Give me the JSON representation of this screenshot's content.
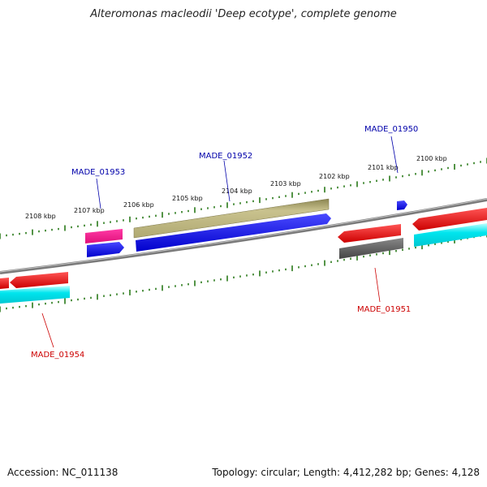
{
  "title": "Alteromonas macleodii 'Deep ecotype', complete genome",
  "footer": {
    "accession": "Accession: NC_011138",
    "summary": "Topology: circular; Length: 4,412,282 bp; Genes: 4,128"
  },
  "tick_labels": [
    "2100 kbp",
    "2101 kbp",
    "2102 kbp",
    "2103 kbp",
    "2104 kbp",
    "2105 kbp",
    "2106 kbp",
    "2107 kbp",
    "2108 kbp"
  ],
  "gene_labels": [
    {
      "text": "MADE_01950",
      "color": "#0000aa"
    },
    {
      "text": "MADE_01951",
      "color": "#cc0000"
    },
    {
      "text": "MADE_01952",
      "color": "#0000aa"
    },
    {
      "text": "MADE_01953",
      "color": "#0000aa"
    },
    {
      "text": "MADE_01954",
      "color": "#cc0000"
    }
  ],
  "colors": {
    "backbone": "#888888",
    "tick": "#2a7a1a",
    "forward_cds": "#0000ee",
    "reverse_cds": "#ee0000",
    "rna": "#ff1493",
    "tan_feature": "#b7b07a",
    "cyan_feature": "#00e5ee",
    "gray_feature": "#666666"
  }
}
